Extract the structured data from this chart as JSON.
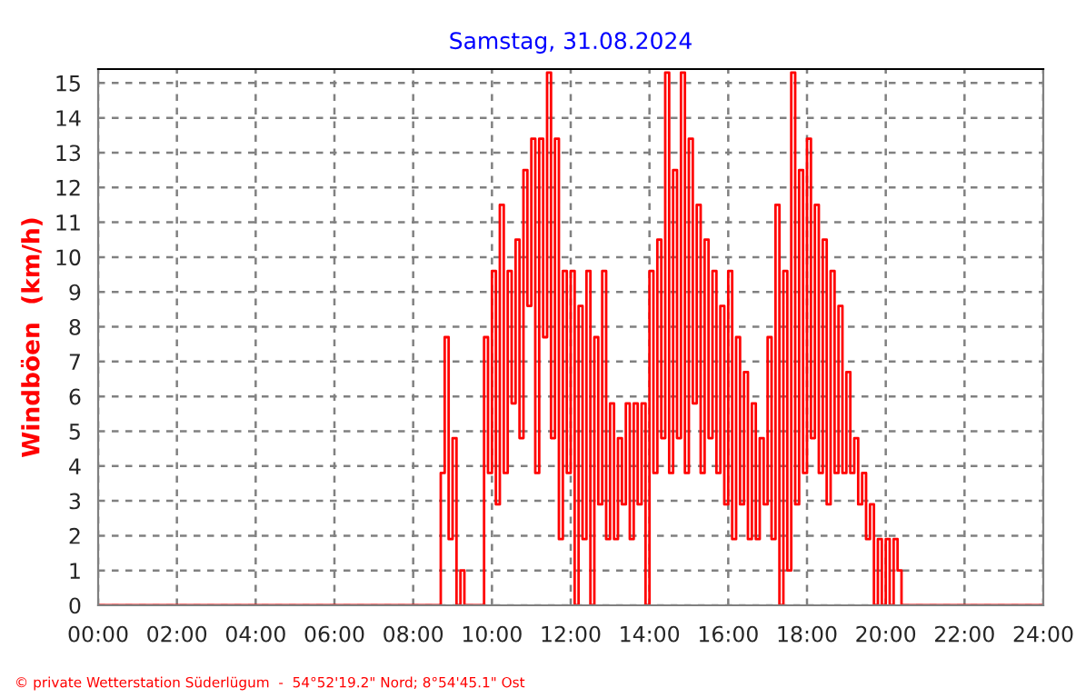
{
  "chart_data": {
    "type": "step",
    "title": "Samstag, 31.08.2024",
    "ylabel": "Windböen  (km/h)",
    "annotations": [
      "© private Wetterstation Süderlügum  -  54°52'19.2\" Nord; 8°54'45.1\" Ost"
    ],
    "series": [
      {
        "color": "#ff0000",
        "x": [
          0.0,
          8.7,
          8.8,
          8.9,
          9.0,
          9.1,
          9.2,
          9.3,
          9.8,
          9.9,
          10.0,
          10.1,
          10.2,
          10.3,
          10.4,
          10.5,
          10.6,
          10.7,
          10.8,
          10.9,
          11.0,
          11.1,
          11.2,
          11.3,
          11.4,
          11.5,
          11.6,
          11.7,
          11.8,
          11.9,
          12.0,
          12.1,
          12.2,
          12.3,
          12.4,
          12.5,
          12.6,
          12.7,
          12.8,
          12.9,
          13.0,
          13.1,
          13.2,
          13.3,
          13.4,
          13.5,
          13.6,
          13.7,
          13.8,
          13.9,
          14.0,
          14.1,
          14.2,
          14.3,
          14.4,
          14.5,
          14.6,
          14.7,
          14.8,
          14.9,
          15.0,
          15.1,
          15.2,
          15.3,
          15.4,
          15.5,
          15.6,
          15.7,
          15.8,
          15.9,
          16.0,
          16.1,
          16.2,
          16.3,
          16.4,
          16.5,
          16.6,
          16.7,
          16.8,
          16.9,
          17.0,
          17.1,
          17.2,
          17.3,
          17.4,
          17.5,
          17.6,
          17.7,
          17.8,
          17.9,
          18.0,
          18.1,
          18.2,
          18.3,
          18.4,
          18.5,
          18.6,
          18.7,
          18.8,
          18.9,
          19.0,
          19.1,
          19.2,
          19.3,
          19.4,
          19.5,
          19.6,
          19.7,
          19.8,
          19.9,
          20.0,
          20.1,
          20.2,
          20.3,
          20.4,
          24.0
        ],
        "values": [
          0,
          3.8,
          7.7,
          1.9,
          4.8,
          0,
          1,
          0,
          7.7,
          3.8,
          9.6,
          2.9,
          11.5,
          3.8,
          9.6,
          5.8,
          10.5,
          4.8,
          12.5,
          8.6,
          13.4,
          3.8,
          13.4,
          7.7,
          15.3,
          4.8,
          13.4,
          1.9,
          9.6,
          3.8,
          9.6,
          0,
          8.6,
          1.9,
          9.6,
          0,
          7.7,
          2.9,
          9.6,
          1.9,
          5.8,
          1.9,
          4.8,
          2.9,
          5.8,
          1.9,
          5.8,
          2.9,
          5.8,
          0,
          9.6,
          3.8,
          10.5,
          4.8,
          15.3,
          3.8,
          12.5,
          4.8,
          15.3,
          3.8,
          13.4,
          5.8,
          11.5,
          3.8,
          10.5,
          4.8,
          9.6,
          3.8,
          8.6,
          2.9,
          9.6,
          1.9,
          7.7,
          2.9,
          6.7,
          1.9,
          5.8,
          1.9,
          4.8,
          2.9,
          7.7,
          1.9,
          11.5,
          0,
          9.6,
          1,
          15.3,
          2.9,
          12.5,
          3.8,
          13.4,
          4.8,
          11.5,
          3.8,
          10.5,
          2.9,
          9.6,
          3.8,
          8.6,
          3.8,
          6.7,
          3.8,
          4.8,
          2.9,
          3.8,
          1.9,
          2.9,
          0,
          1.9,
          0,
          1.9,
          0,
          1.9,
          1,
          0,
          0
        ]
      }
    ],
    "xlim": [
      0,
      24
    ],
    "xticks": [
      {
        "value": 0,
        "label": "00:00"
      },
      {
        "value": 2,
        "label": "02:00"
      },
      {
        "value": 4,
        "label": "04:00"
      },
      {
        "value": 6,
        "label": "06:00"
      },
      {
        "value": 8,
        "label": "08:00"
      },
      {
        "value": 10,
        "label": "10:00"
      },
      {
        "value": 12,
        "label": "12:00"
      },
      {
        "value": 14,
        "label": "14:00"
      },
      {
        "value": 16,
        "label": "16:00"
      },
      {
        "value": 18,
        "label": "18:00"
      },
      {
        "value": 20,
        "label": "20:00"
      },
      {
        "value": 22,
        "label": "22:00"
      },
      {
        "value": 24,
        "label": "24:00"
      }
    ],
    "ylim": [
      0,
      15.4
    ],
    "yticks": [
      0,
      1,
      2,
      3,
      4,
      5,
      6,
      7,
      8,
      9,
      10,
      11,
      12,
      13,
      14,
      15
    ],
    "grid": true,
    "line_style": "solid",
    "marker": "none"
  }
}
